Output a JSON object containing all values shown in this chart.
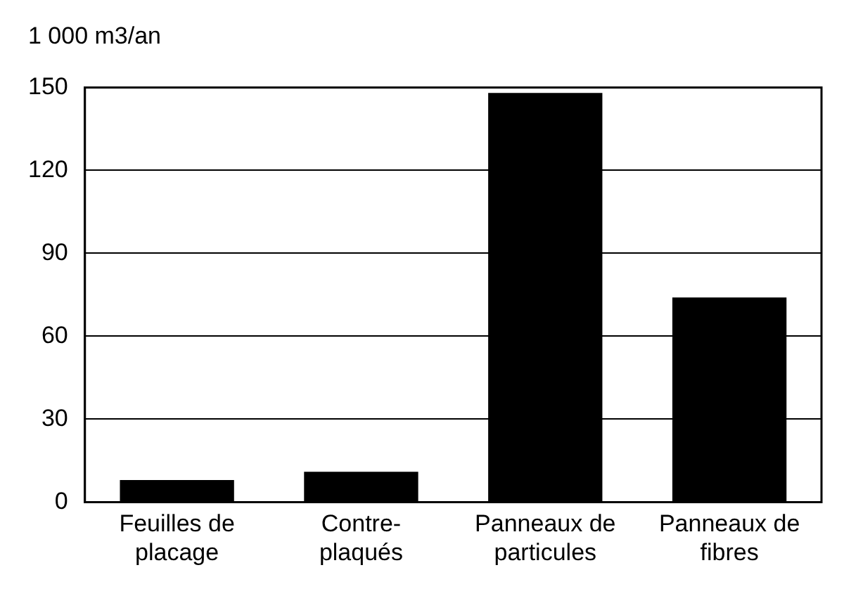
{
  "chart_data": {
    "type": "bar",
    "ylabel": "1 000 m3/an",
    "categories": [
      "Feuilles de placage",
      "Contre-plaqués",
      "Panneaux de particules",
      "Panneaux de fibres"
    ],
    "values": [
      8,
      11,
      148,
      74
    ],
    "color": "#000000",
    "ylim": [
      0,
      150
    ],
    "yticks": [
      0,
      30,
      60,
      90,
      120,
      150
    ],
    "grid": "y",
    "legend": false
  }
}
